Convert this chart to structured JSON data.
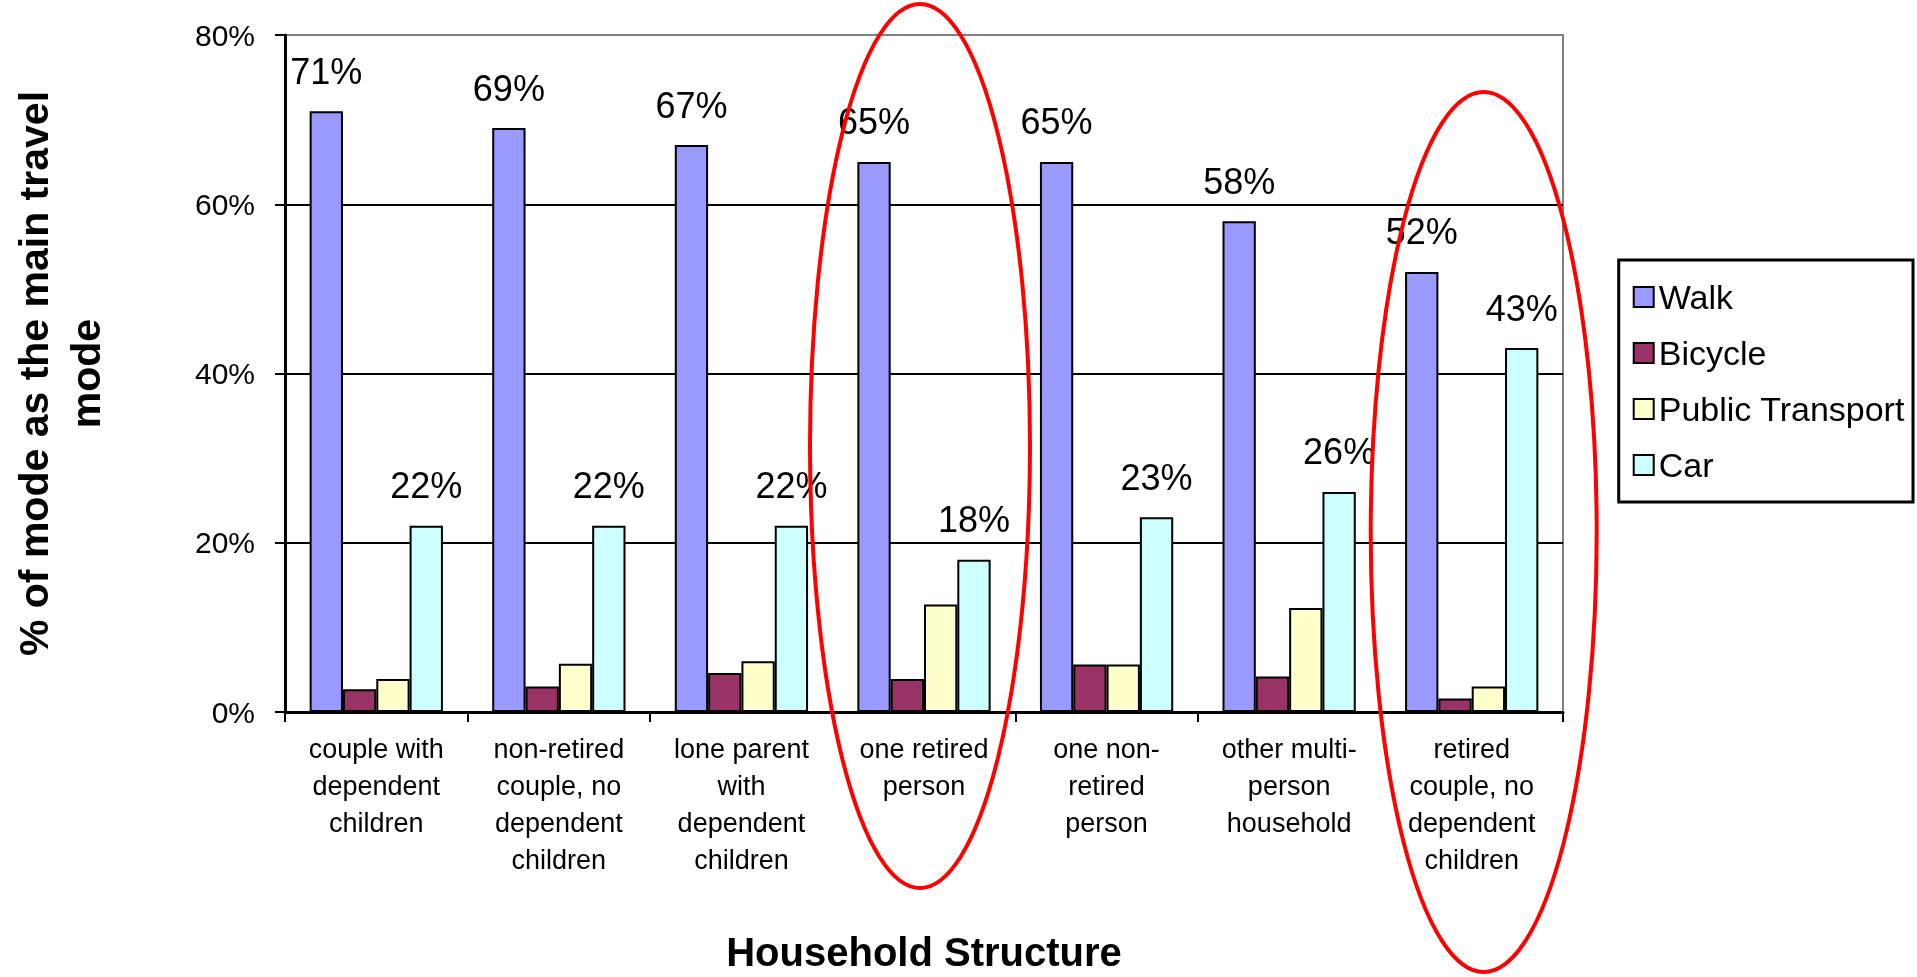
{
  "chart_data": {
    "type": "bar",
    "xlabel": "Household Structure",
    "ylabel": "% of mode as the main travel mode",
    "categories": [
      "couple with dependent children",
      "non-retired couple, no dependent children",
      "lone parent with dependent children",
      "one retired person",
      "one non-retired person",
      "other multi-person household",
      "retired couple, no dependent children"
    ],
    "series": [
      {
        "name": "Walk",
        "color": "#9999ff",
        "values": [
          71,
          69,
          67,
          65,
          65,
          58,
          52
        ],
        "value_labels": [
          "71%",
          "69%",
          "67%",
          "65%",
          "65%",
          "58%",
          "52%"
        ]
      },
      {
        "name": "Bicycle",
        "color": "#993366",
        "values": [
          2.7,
          3.0,
          4.6,
          3.9,
          5.6,
          4.2,
          1.6
        ]
      },
      {
        "name": "Public Transport",
        "color": "#ffffcc",
        "values": [
          3.9,
          5.7,
          6.0,
          12.7,
          5.6,
          12.3,
          3.0
        ]
      },
      {
        "name": "Car",
        "color": "#ccffff",
        "values": [
          22,
          22,
          22,
          18,
          23,
          26,
          43
        ],
        "value_labels": [
          "22%",
          "22%",
          "22%",
          "18%",
          "23%",
          "26%",
          "43%"
        ]
      }
    ],
    "ylim": [
      0,
      80
    ],
    "yticks": [
      {
        "value": 0,
        "label": "0%"
      },
      {
        "value": 20,
        "label": "20%"
      },
      {
        "value": 40,
        "label": "40%"
      },
      {
        "value": 60,
        "label": "60%"
      },
      {
        "value": 80,
        "label": "80%"
      }
    ],
    "grid": "y",
    "legend": "right"
  }
}
